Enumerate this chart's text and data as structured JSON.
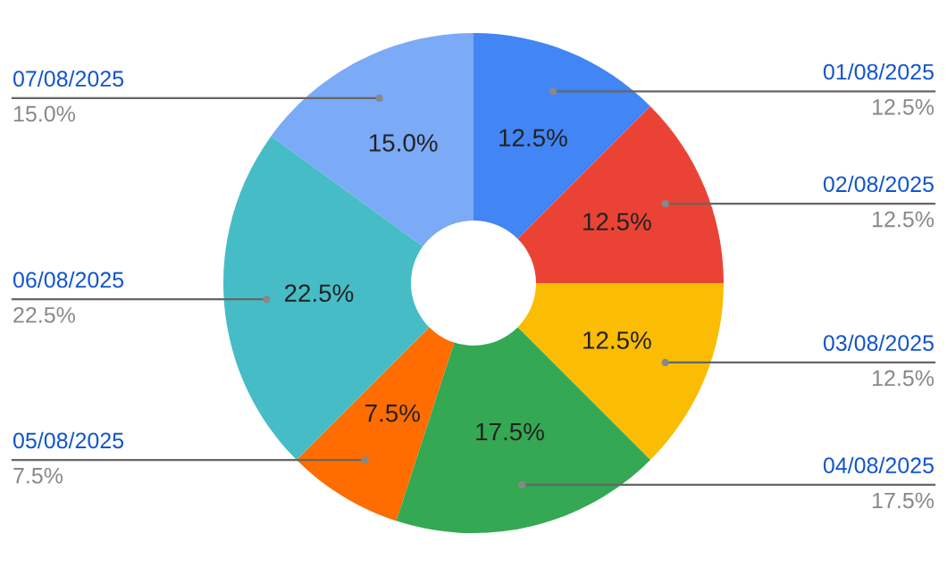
{
  "chart_data": {
    "type": "donut",
    "categories": [
      "01/08/2025",
      "02/08/2025",
      "03/08/2025",
      "04/08/2025",
      "05/08/2025",
      "06/08/2025",
      "07/08/2025"
    ],
    "values": [
      12.5,
      12.5,
      12.5,
      17.5,
      7.5,
      22.5,
      15.0
    ],
    "value_labels": [
      "12.5%",
      "12.5%",
      "12.5%",
      "17.5%",
      "7.5%",
      "22.5%",
      "15.0%"
    ],
    "colors": [
      "#4285f4",
      "#ea4335",
      "#fbbc04",
      "#34a853",
      "#ff6d01",
      "#46bdc6",
      "#7baaf7"
    ],
    "legend": false
  }
}
